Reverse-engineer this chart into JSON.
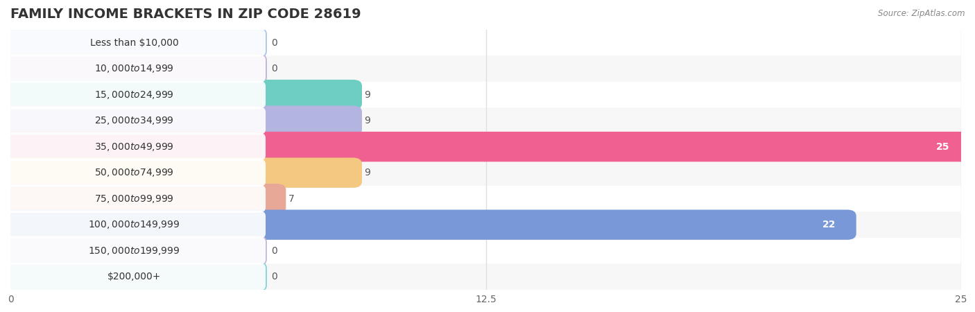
{
  "title": "FAMILY INCOME BRACKETS IN ZIP CODE 28619",
  "source_text": "Source: ZipAtlas.com",
  "categories": [
    "Less than $10,000",
    "$10,000 to $14,999",
    "$15,000 to $24,999",
    "$25,000 to $34,999",
    "$35,000 to $49,999",
    "$50,000 to $74,999",
    "$75,000 to $99,999",
    "$100,000 to $149,999",
    "$150,000 to $199,999",
    "$200,000+"
  ],
  "values": [
    0,
    0,
    9,
    9,
    25,
    9,
    7,
    22,
    0,
    0
  ],
  "bar_colors": [
    "#aac8e8",
    "#c4b2d8",
    "#6ecec4",
    "#b4b4e0",
    "#f06090",
    "#f5c882",
    "#e8a898",
    "#7898d8",
    "#c8b8d8",
    "#86d4d4"
  ],
  "xlim": [
    0,
    25
  ],
  "xticks": [
    0,
    12.5,
    25
  ],
  "background_color": "#ffffff",
  "row_bg_odd": "#f7f7f7",
  "row_bg_even": "#ffffff",
  "grid_color": "#e0e0e0",
  "title_fontsize": 14,
  "label_fontsize": 10,
  "value_fontsize": 10,
  "figsize": [
    14.06,
    4.5
  ],
  "dpi": 100
}
